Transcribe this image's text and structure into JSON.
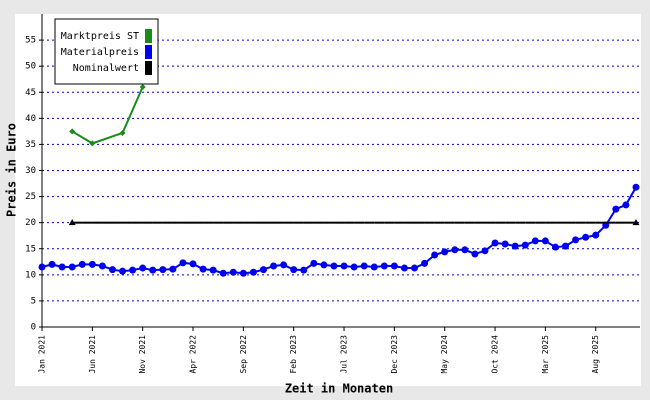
{
  "chart_data": {
    "type": "line",
    "x_label": "Zeit in Monaten",
    "y_label": "Preis in Euro",
    "categories": [
      "Jan 2021",
      null,
      null,
      null,
      null,
      "Jun 2021",
      null,
      null,
      null,
      null,
      "Nov 2021",
      null,
      null,
      null,
      null,
      "Apr 2022",
      null,
      null,
      null,
      null,
      "Sep 2022",
      null,
      null,
      null,
      null,
      "Feb 2023",
      null,
      null,
      null,
      null,
      "Jul 2023",
      null,
      null,
      null,
      null,
      "Dec 2023",
      null,
      null,
      null,
      null,
      "May 2024",
      null,
      null,
      null,
      null,
      "Oct 2024",
      null,
      null,
      null,
      null,
      "Mar 2025",
      null,
      null,
      null,
      null,
      "Aug 2025",
      null,
      null,
      null,
      null
    ],
    "ylim": [
      0,
      60
    ],
    "yticks": [
      0,
      5,
      10,
      15,
      20,
      25,
      30,
      35,
      40,
      45,
      50,
      55
    ],
    "grid": true,
    "legend": "top-left",
    "series": [
      {
        "name": "Marktpreis ST",
        "color": "#1a8c1a",
        "marker": "diamond",
        "values": [
          null,
          null,
          null,
          37.5,
          null,
          35.2,
          null,
          null,
          37.2,
          null,
          46,
          null,
          null,
          null,
          null,
          null,
          null,
          null,
          null,
          null,
          null,
          null,
          null,
          null,
          null,
          null,
          null,
          null,
          null,
          null,
          null,
          null,
          null,
          null,
          null,
          null,
          null,
          null,
          null,
          null,
          null,
          null,
          null,
          null,
          null,
          null,
          null,
          null,
          null,
          null,
          null,
          null,
          null,
          null,
          null,
          null,
          null,
          null,
          null,
          null
        ]
      },
      {
        "name": "Materialpreis",
        "color": "#0000ee",
        "marker": "circle",
        "values": [
          11.5,
          12,
          11.5,
          11.5,
          12,
          12,
          11.7,
          11,
          10.7,
          10.9,
          11.3,
          10.9,
          11,
          11.1,
          12.3,
          12.1,
          11.1,
          10.9,
          10.3,
          10.5,
          10.3,
          10.5,
          11,
          11.7,
          11.9,
          11,
          10.9,
          12.2,
          11.9,
          11.7,
          11.7,
          11.5,
          11.7,
          11.5,
          11.7,
          11.7,
          11.3,
          11.3,
          12.2,
          13.8,
          14.4,
          14.8,
          14.8,
          14,
          14.6,
          16.1,
          15.9,
          15.5,
          15.7,
          16.5,
          16.5,
          15.3,
          15.5,
          16.7,
          17.2,
          17.6,
          19.5,
          22.6,
          23.4,
          26.8
        ]
      },
      {
        "name": "Nominalwert",
        "color": "#000000",
        "marker": "triangle",
        "values": [
          null,
          null,
          null,
          20,
          20,
          20,
          20,
          20,
          20,
          20,
          20,
          20,
          20,
          20,
          20,
          20,
          20,
          20,
          20,
          20,
          20,
          20,
          20,
          20,
          20,
          20,
          20,
          20,
          20,
          20,
          20,
          20,
          20,
          20,
          20,
          20,
          20,
          20,
          20,
          20,
          20,
          20,
          20,
          20,
          20,
          20,
          20,
          20,
          20,
          20,
          20,
          20,
          20,
          20,
          20,
          20,
          20,
          20,
          20,
          20
        ]
      }
    ]
  }
}
